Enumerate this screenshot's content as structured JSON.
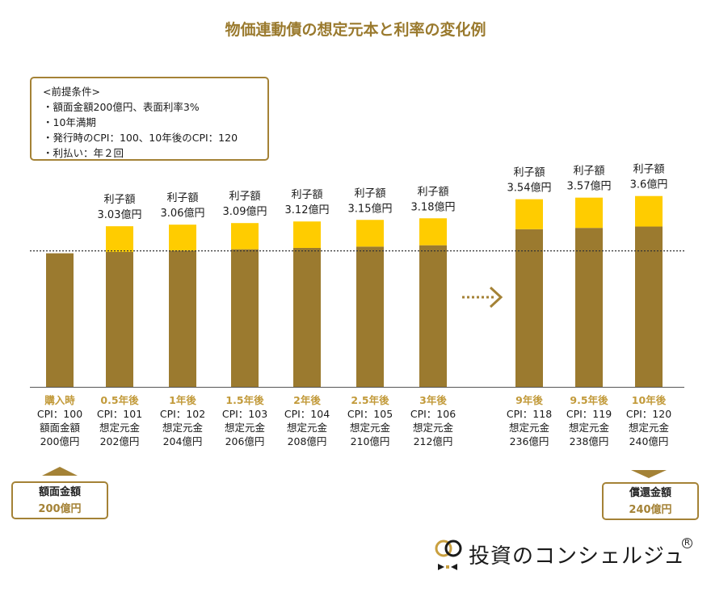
{
  "title": "物価連動債の想定元本と利率の変化例",
  "conditions": {
    "heading": "<前提条件>",
    "items": [
      "・額面金額200億円、表面利率3%",
      "・10年満期",
      "・発行時のCPI：100、10年後のCPI：120",
      "・利払い：年２回"
    ]
  },
  "colors": {
    "principal": "#9b7a2f",
    "interest": "#ffcc00",
    "accent": "#a48236",
    "label_accent": "#c29a3a"
  },
  "chart_data": {
    "type": "bar",
    "stacked": true,
    "title": "物価連動債の想定元本と利率の変化例",
    "unit": "億円",
    "categories": [
      "購入時",
      "0.5年後",
      "1年後",
      "1.5年後",
      "2年後",
      "2.5年後",
      "3年後",
      "9年後",
      "9.5年後",
      "10年後"
    ],
    "cpi_labels": [
      "CPI：100",
      "CPI：101",
      "CPI：102",
      "CPI：103",
      "CPI：104",
      "CPI：105",
      "CPI：106",
      "CPI：118",
      "CPI：119",
      "CPI：120"
    ],
    "principal_labels": [
      "額面金額",
      "想定元金",
      "想定元金",
      "想定元金",
      "想定元金",
      "想定元金",
      "想定元金",
      "想定元金",
      "想定元金",
      "想定元金"
    ],
    "principal_value_labels": [
      "200億円",
      "202億円",
      "204億円",
      "206億円",
      "208億円",
      "210億円",
      "212億円",
      "236億円",
      "238億円",
      "240億円"
    ],
    "series": [
      {
        "name": "想定元金",
        "values": [
          200,
          202,
          204,
          206,
          208,
          210,
          212,
          236,
          238,
          240
        ]
      },
      {
        "name": "利子額",
        "values": [
          null,
          3.03,
          3.06,
          3.09,
          3.12,
          3.15,
          3.18,
          3.54,
          3.57,
          3.6
        ]
      }
    ],
    "interest_heading": "利子額",
    "interest_labels": [
      "",
      "3.03億円",
      "3.06億円",
      "3.09億円",
      "3.12億円",
      "3.15億円",
      "3.18億円",
      "3.54億円",
      "3.57億円",
      "3.6億円"
    ],
    "reference_line": 200,
    "gap_after_index": 6
  },
  "bottom_left": {
    "label": "額面金額",
    "value": "200億円"
  },
  "bottom_right": {
    "label": "償還金額",
    "value": "240億円"
  },
  "logo": {
    "text": "投資のコンシェルジュ",
    "mark": "R"
  }
}
